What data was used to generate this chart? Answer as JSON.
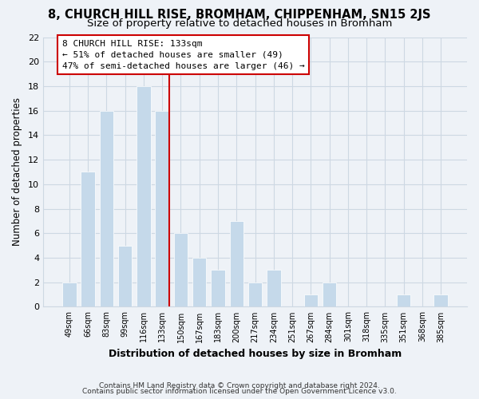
{
  "title": "8, CHURCH HILL RISE, BROMHAM, CHIPPENHAM, SN15 2JS",
  "subtitle": "Size of property relative to detached houses in Bromham",
  "xlabel": "Distribution of detached houses by size in Bromham",
  "ylabel": "Number of detached properties",
  "bar_labels": [
    "49sqm",
    "66sqm",
    "83sqm",
    "99sqm",
    "116sqm",
    "133sqm",
    "150sqm",
    "167sqm",
    "183sqm",
    "200sqm",
    "217sqm",
    "234sqm",
    "251sqm",
    "267sqm",
    "284sqm",
    "301sqm",
    "318sqm",
    "335sqm",
    "351sqm",
    "368sqm",
    "385sqm"
  ],
  "bar_values": [
    2,
    11,
    16,
    5,
    18,
    16,
    6,
    4,
    3,
    7,
    2,
    3,
    0,
    1,
    2,
    0,
    0,
    0,
    1,
    0,
    1
  ],
  "bar_color": "#c5d9ea",
  "bar_edge_color": "#ffffff",
  "vline_index": 5,
  "vline_color": "#cc0000",
  "ylim": [
    0,
    22
  ],
  "yticks": [
    0,
    2,
    4,
    6,
    8,
    10,
    12,
    14,
    16,
    18,
    20,
    22
  ],
  "annotation_title": "8 CHURCH HILL RISE: 133sqm",
  "annotation_line1": "← 51% of detached houses are smaller (49)",
  "annotation_line2": "47% of semi-detached houses are larger (46) →",
  "annotation_box_color": "#ffffff",
  "annotation_box_edge": "#cc0000",
  "footer_line1": "Contains HM Land Registry data © Crown copyright and database right 2024.",
  "footer_line2": "Contains public sector information licensed under the Open Government Licence v3.0.",
  "grid_color": "#cdd8e3",
  "background_color": "#eef2f7",
  "title_fontsize": 10.5,
  "subtitle_fontsize": 9.5
}
